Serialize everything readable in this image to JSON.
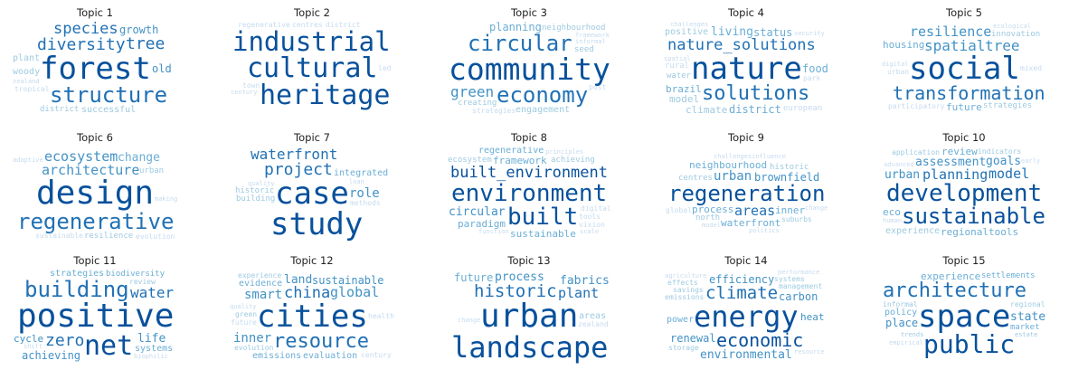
{
  "palette": [
    "#08306b",
    "#08519c",
    "#2171b5",
    "#4292c6",
    "#6baed6",
    "#9ecae1",
    "#c6dbef"
  ],
  "topics": [
    {
      "title": "Topic 1",
      "words": [
        [
          "forest",
          34,
          1
        ],
        [
          "structure",
          24,
          2
        ],
        [
          "diversity",
          18,
          2
        ],
        [
          "tree",
          18,
          2
        ],
        [
          "species",
          17,
          2
        ],
        [
          "restoration",
          13,
          3
        ],
        [
          "growth",
          12,
          3
        ],
        [
          "old",
          12,
          3
        ],
        [
          "floresta",
          12,
          4
        ],
        [
          "dynamics",
          12,
          4
        ],
        [
          "woody",
          10,
          5
        ],
        [
          "successful",
          10,
          5
        ],
        [
          "estrutura",
          12,
          4
        ],
        [
          "plant",
          10,
          5
        ],
        [
          "district",
          9,
          5
        ],
        [
          "tropical",
          8,
          6
        ],
        [
          "zealand",
          7,
          6
        ]
      ]
    },
    {
      "title": "Topic 2",
      "words": [
        [
          "cultural",
          30,
          1
        ],
        [
          "heritage",
          30,
          1
        ],
        [
          "industrial",
          30,
          1
        ],
        [
          "tourism",
          17,
          3
        ],
        [
          "creative",
          15,
          4
        ],
        [
          "transition",
          11,
          5
        ],
        [
          "ecological",
          9,
          6
        ],
        [
          "centres",
          8,
          6
        ],
        [
          "town",
          8,
          6
        ],
        [
          "led",
          8,
          6
        ],
        [
          "district",
          8,
          6
        ],
        [
          "regenerative",
          8,
          6
        ],
        [
          "century",
          7,
          6
        ]
      ]
    },
    {
      "title": "Topic 3",
      "words": [
        [
          "community",
          38,
          1
        ],
        [
          "circular",
          24,
          2
        ],
        [
          "economy",
          24,
          2
        ],
        [
          "green",
          16,
          3
        ],
        [
          "building",
          14,
          4
        ],
        [
          "planning",
          12,
          4
        ],
        [
          "engagement",
          10,
          5
        ],
        [
          "seed",
          9,
          5
        ],
        [
          "creating",
          9,
          5
        ],
        [
          "strategies",
          8,
          6
        ],
        [
          "post",
          8,
          6
        ],
        [
          "neighbourhood",
          9,
          5
        ],
        [
          "construction",
          8,
          6
        ],
        [
          "informal",
          7,
          6
        ],
        [
          "framework",
          7,
          6
        ]
      ]
    },
    {
      "title": "Topic 4",
      "words": [
        [
          "nature",
          34,
          1
        ],
        [
          "solutions",
          22,
          2
        ],
        [
          "nature_solutions",
          17,
          2
        ],
        [
          "living",
          13,
          4
        ],
        [
          "brazil",
          11,
          4
        ],
        [
          "food",
          12,
          4
        ],
        [
          "status",
          12,
          4
        ],
        [
          "district",
          12,
          4
        ],
        [
          "climate",
          11,
          5
        ],
        [
          "model",
          11,
          5
        ],
        [
          "positive",
          10,
          5
        ],
        [
          "european",
          9,
          6
        ],
        [
          "water",
          9,
          5
        ],
        [
          "rural",
          9,
          6
        ],
        [
          "park",
          8,
          6
        ],
        [
          "security",
          7,
          6
        ],
        [
          "spatial",
          7,
          6
        ],
        [
          "challenges",
          7,
          6
        ],
        [
          "management",
          7,
          6
        ]
      ]
    },
    {
      "title": "Topic 5",
      "words": [
        [
          "social",
          34,
          1
        ],
        [
          "transformation",
          20,
          2
        ],
        [
          "spatial",
          16,
          3
        ],
        [
          "tree",
          16,
          3
        ],
        [
          "resilience",
          15,
          3
        ],
        [
          "housing",
          11,
          4
        ],
        [
          "future",
          11,
          4
        ],
        [
          "innovation",
          9,
          5
        ],
        [
          "strategies",
          9,
          5
        ],
        [
          "participatory",
          8,
          6
        ],
        [
          "environmental",
          8,
          6
        ],
        [
          "mixed",
          8,
          6
        ],
        [
          "urban",
          8,
          6
        ],
        [
          "ecological",
          7,
          6
        ],
        [
          "digital",
          7,
          6
        ],
        [
          "learning",
          7,
          6
        ]
      ]
    },
    {
      "title": "Topic 6",
      "words": [
        [
          "design",
          36,
          1
        ],
        [
          "regenerative",
          25,
          2
        ],
        [
          "architecture",
          15,
          3
        ],
        [
          "ecosystem",
          15,
          3
        ],
        [
          "change",
          13,
          4
        ],
        [
          "climate",
          13,
          4
        ],
        [
          "ecological",
          11,
          4
        ],
        [
          "resilience",
          9,
          5
        ],
        [
          "ecosystem_services",
          9,
          5
        ],
        [
          "sustainable",
          8,
          6
        ],
        [
          "urban",
          9,
          5
        ],
        [
          "evolution",
          8,
          6
        ],
        [
          "building",
          8,
          6
        ],
        [
          "adaptive",
          7,
          6
        ],
        [
          "making",
          7,
          6
        ],
        [
          "practice",
          7,
          6
        ],
        [
          "analysis",
          7,
          6
        ]
      ]
    },
    {
      "title": "Topic 7",
      "words": [
        [
          "case",
          34,
          1
        ],
        [
          "study",
          34,
          1
        ],
        [
          "waterfront",
          16,
          2
        ],
        [
          "project",
          18,
          2
        ],
        [
          "innovation",
          15,
          3
        ],
        [
          "exploring",
          14,
          3
        ],
        [
          "role",
          14,
          3
        ],
        [
          "collaborative",
          10,
          4
        ],
        [
          "infrastructure",
          10,
          4
        ],
        [
          "integrated",
          10,
          4
        ],
        [
          "neighborhood",
          9,
          5
        ],
        [
          "building",
          9,
          5
        ],
        [
          "historic",
          9,
          5
        ],
        [
          "methods",
          8,
          6
        ],
        [
          "quality",
          7,
          6
        ],
        [
          "loan",
          7,
          6
        ]
      ]
    },
    {
      "title": "Topic 8",
      "words": [
        [
          "environment",
          26,
          1
        ],
        [
          "built_environment",
          19,
          1
        ],
        [
          "built",
          26,
          1
        ],
        [
          "circular",
          13,
          3
        ],
        [
          "framework",
          11,
          4
        ],
        [
          "sustainable",
          11,
          4
        ],
        [
          "paradigm",
          11,
          4
        ],
        [
          "regenerative",
          10,
          4
        ],
        [
          "achieving",
          9,
          5
        ],
        [
          "ecosystem",
          9,
          5
        ],
        [
          "digital",
          8,
          6
        ],
        [
          "tools",
          8,
          6
        ],
        [
          "vision",
          8,
          6
        ],
        [
          "function",
          7,
          6
        ],
        [
          "principles",
          7,
          6
        ],
        [
          "scale",
          7,
          6
        ]
      ]
    },
    {
      "title": "Topic 9",
      "words": [
        [
          "regeneration",
          27,
          1
        ],
        [
          "areas",
          15,
          2
        ],
        [
          "brownfield",
          12,
          3
        ],
        [
          "urban",
          14,
          3
        ],
        [
          "process",
          11,
          4
        ],
        [
          "inner",
          11,
          4
        ],
        [
          "waterfront",
          11,
          4
        ],
        [
          "neighbourhood",
          11,
          4
        ],
        [
          "centres",
          9,
          5
        ],
        [
          "historic",
          9,
          5
        ],
        [
          "north",
          9,
          5
        ],
        [
          "suburbs",
          8,
          5
        ],
        [
          "global",
          8,
          6
        ],
        [
          "challenges",
          7,
          6
        ],
        [
          "change",
          7,
          6
        ],
        [
          "model",
          7,
          6
        ],
        [
          "politics",
          7,
          6
        ],
        [
          "influence",
          7,
          6
        ]
      ]
    },
    {
      "title": "Topic 10",
      "words": [
        [
          "development",
          26,
          1
        ],
        [
          "sustainable",
          24,
          1
        ],
        [
          "planning",
          15,
          2
        ],
        [
          "model",
          15,
          2
        ],
        [
          "assessment",
          13,
          3
        ],
        [
          "urban",
          13,
          3
        ],
        [
          "goals",
          13,
          3
        ],
        [
          "regional",
          11,
          4
        ],
        [
          "review",
          11,
          4
        ],
        [
          "eco",
          11,
          4
        ],
        [
          "tools",
          11,
          4
        ],
        [
          "experience",
          10,
          5
        ],
        [
          "indicators",
          8,
          5
        ],
        [
          "application",
          8,
          5
        ],
        [
          "advanced",
          7,
          6
        ],
        [
          "literature",
          7,
          6
        ],
        [
          "human",
          7,
          6
        ],
        [
          "early",
          7,
          6
        ]
      ]
    },
    {
      "title": "Topic 11",
      "words": [
        [
          "positive",
          36,
          1
        ],
        [
          "net",
          30,
          1
        ],
        [
          "building",
          24,
          2
        ],
        [
          "water",
          16,
          2
        ],
        [
          "zero",
          18,
          2
        ],
        [
          "achieving",
          12,
          3
        ],
        [
          "life",
          13,
          3
        ],
        [
          "cycle",
          11,
          3
        ],
        [
          "optimization",
          12,
          3
        ],
        [
          "systems",
          10,
          4
        ],
        [
          "strategies",
          10,
          4
        ],
        [
          "biodiversity",
          9,
          4
        ],
        [
          "review",
          8,
          5
        ],
        [
          "biophilic",
          7,
          6
        ],
        [
          "shift",
          7,
          6
        ]
      ]
    },
    {
      "title": "Topic 12",
      "words": [
        [
          "cities",
          34,
          1
        ],
        [
          "resource",
          22,
          2
        ],
        [
          "china",
          17,
          2
        ],
        [
          "global",
          15,
          3
        ],
        [
          "smart",
          14,
          3
        ],
        [
          "sustainable",
          12,
          3
        ],
        [
          "inner",
          14,
          3
        ],
        [
          "land",
          13,
          3
        ],
        [
          "evaluation",
          10,
          4
        ],
        [
          "evidence",
          10,
          4
        ],
        [
          "emissions",
          10,
          4
        ],
        [
          "experience",
          8,
          5
        ],
        [
          "evolution",
          8,
          5
        ],
        [
          "century",
          8,
          6
        ],
        [
          "health",
          8,
          6
        ],
        [
          "promoting",
          8,
          6
        ],
        [
          "future",
          8,
          6
        ],
        [
          "technology",
          8,
          6
        ],
        [
          "green",
          8,
          5
        ],
        [
          "quality",
          7,
          6
        ],
        [
          "european",
          7,
          6
        ],
        [
          "governance",
          7,
          6
        ]
      ]
    },
    {
      "title": "Topic 13",
      "words": [
        [
          "urban",
          36,
          1
        ],
        [
          "landscape",
          32,
          1
        ],
        [
          "historic",
          19,
          2
        ],
        [
          "creating",
          16,
          2
        ],
        [
          "project",
          16,
          3
        ],
        [
          "process",
          13,
          3
        ],
        [
          "fabrics",
          13,
          3
        ],
        [
          "plant",
          15,
          2
        ],
        [
          "future",
          12,
          4
        ],
        [
          "metabolism",
          10,
          4
        ],
        [
          "areas",
          10,
          5
        ],
        [
          "enhancing",
          8,
          6
        ],
        [
          "conservation",
          8,
          6
        ],
        [
          "resilience",
          8,
          6
        ],
        [
          "zealand",
          8,
          6
        ],
        [
          "ecological",
          7,
          6
        ],
        [
          "change",
          7,
          6
        ]
      ]
    },
    {
      "title": "Topic 14",
      "words": [
        [
          "energy",
          32,
          1
        ],
        [
          "economic",
          20,
          1
        ],
        [
          "climate",
          19,
          2
        ],
        [
          "analysis",
          18,
          2
        ],
        [
          "environmental",
          13,
          3
        ],
        [
          "efficiency",
          12,
          3
        ],
        [
          "renewal",
          12,
          3
        ],
        [
          "carbon",
          12,
          3
        ],
        [
          "heat",
          11,
          3
        ],
        [
          "assessment",
          10,
          4
        ],
        [
          "power",
          10,
          4
        ],
        [
          "emissions",
          8,
          5
        ],
        [
          "management",
          8,
          5
        ],
        [
          "savings",
          8,
          5
        ],
        [
          "storage",
          8,
          5
        ],
        [
          "systems",
          8,
          5
        ],
        [
          "effects",
          8,
          5
        ],
        [
          "agriculture",
          7,
          6
        ],
        [
          "resource",
          7,
          6
        ],
        [
          "performance",
          7,
          6
        ]
      ]
    },
    {
      "title": "Topic 15",
      "words": [
        [
          "space",
          34,
          1
        ],
        [
          "public",
          28,
          1
        ],
        [
          "architecture",
          22,
          2
        ],
        [
          "housing",
          22,
          2
        ],
        [
          "cultural",
          16,
          3
        ],
        [
          "state",
          13,
          3
        ],
        [
          "experience",
          11,
          4
        ],
        [
          "place",
          12,
          3
        ],
        [
          "policy",
          10,
          4
        ],
        [
          "settlements",
          9,
          4
        ],
        [
          "market",
          9,
          4
        ],
        [
          "production",
          9,
          4
        ],
        [
          "informal",
          8,
          5
        ],
        [
          "regional",
          8,
          5
        ],
        [
          "trends",
          7,
          5
        ],
        [
          "estate",
          7,
          5
        ],
        [
          "transformation",
          8,
          5
        ],
        [
          "empirical",
          7,
          6
        ]
      ]
    }
  ]
}
